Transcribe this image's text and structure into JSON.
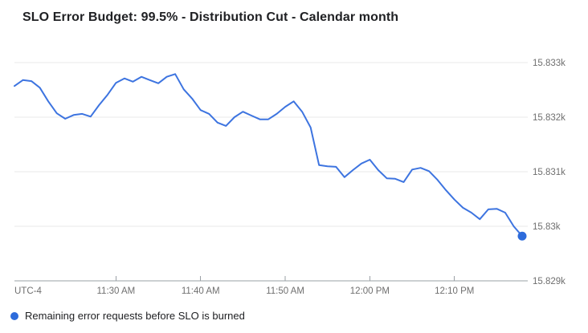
{
  "title": "SLO Error Budget: 99.5% - Distribution Cut - Calendar month",
  "legend": {
    "label": "Remaining error requests before SLO is burned"
  },
  "colors": {
    "background": "#ffffff",
    "title_text": "#202124",
    "legend_text": "#202124",
    "line": "#3d74e0",
    "dot": "#2d6bdb",
    "grid": "#e9e9e9",
    "axis": "#9aa0a6",
    "tick_label": "#6f6f6f"
  },
  "chart_data": {
    "type": "line",
    "title": "SLO Error Budget: 99.5% - Distribution Cut - Calendar month",
    "xlabel": "",
    "ylabel": "",
    "legend_position": "bottom",
    "grid": true,
    "x_axis": {
      "timezone_label": "UTC-4",
      "start_time": "11:18 AM",
      "end_time": "12:18 PM",
      "interval_minutes": 1,
      "ticks": [
        {
          "label": "11:30 AM",
          "index": 12
        },
        {
          "label": "11:40 AM",
          "index": 22
        },
        {
          "label": "11:50 AM",
          "index": 32
        },
        {
          "label": "12:00 PM",
          "index": 42
        },
        {
          "label": "12:10 PM",
          "index": 52
        }
      ]
    },
    "y_axis": {
      "side": "right",
      "range": [
        15829,
        15833.2
      ],
      "ticks": [
        {
          "label": "15.833k",
          "value": 15833
        },
        {
          "label": "15.832k",
          "value": 15832
        },
        {
          "label": "15.831k",
          "value": 15831
        },
        {
          "label": "15.83k",
          "value": 15830
        },
        {
          "label": "15.829k",
          "value": 15829
        }
      ]
    },
    "series": [
      {
        "name": "Remaining error requests before SLO is burned",
        "color": "#3d74e0",
        "end_marker": true,
        "values": [
          15832.57,
          15832.68,
          15832.66,
          15832.54,
          15832.29,
          15832.07,
          15831.97,
          15832.04,
          15832.06,
          15832.01,
          15832.22,
          15832.41,
          15832.63,
          15832.71,
          15832.65,
          15832.74,
          15832.68,
          15832.62,
          15832.74,
          15832.79,
          15832.51,
          15832.34,
          15832.13,
          15832.06,
          15831.9,
          15831.84,
          15832.0,
          15832.1,
          15832.03,
          15831.96,
          15831.96,
          15832.06,
          15832.19,
          15832.29,
          15832.1,
          15831.81,
          15831.12,
          15831.1,
          15831.09,
          15830.9,
          15831.03,
          15831.15,
          15831.22,
          15831.03,
          15830.88,
          15830.87,
          15830.81,
          15831.04,
          15831.07,
          15831.01,
          15830.85,
          15830.66,
          15830.49,
          15830.34,
          15830.25,
          15830.13,
          15830.31,
          15830.32,
          15830.25,
          15830.0,
          15829.82
        ]
      }
    ]
  }
}
